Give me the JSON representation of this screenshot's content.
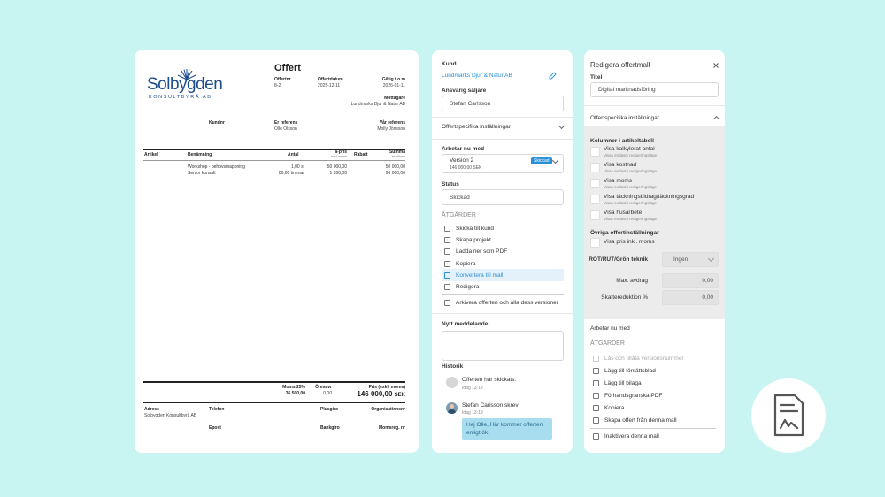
{
  "document": {
    "logo_word": "Solbygden",
    "logo_sub": "KONSULTBYRÅ AB",
    "title": "Offert",
    "offer_no_label": "Offertnr",
    "offer_no": "8-2",
    "offer_date_label": "Offertdatum",
    "offer_date": "2025-12-11",
    "valid_label": "Giltig t o m",
    "valid_date": "2026-01-11",
    "recipient_label": "Mottagare",
    "recipient": "Lundmarks Djur & Natur AB",
    "customer_no_label": "Kundnr",
    "their_ref_label": "Er referens",
    "their_ref": "Olle Olsson",
    "our_ref_label": "Vår referens",
    "our_ref": "Molly Jönsson",
    "columns": {
      "article": "Artikel",
      "name": "Benämning",
      "qty": "Antal",
      "price": "à-pris",
      "price_sub": "exkl. moms",
      "discount": "Rabatt",
      "sum": "Summa",
      "sum_sub": "ex. Moms"
    },
    "rows": [
      {
        "name": "Workshop - behovsmappning",
        "qty": "1,00 st",
        "price": "50 000,00",
        "sum": "50 000,00"
      },
      {
        "name": "Senior konsult",
        "qty": "80,00 timmar",
        "price": "1 200,00",
        "sum": "96 000,00"
      }
    ],
    "vat_label": "Moms 25%",
    "vat_value": "36 500,00",
    "rounding_label": "Öresavr",
    "rounding_value": "0,00",
    "total_label": "Pris (exkl. moms)",
    "total_value": "146 000,00",
    "currency": "SEK",
    "footer": {
      "address_label": "Adress",
      "address": "Solbygden Konsultbyrå AB",
      "phone_label": "Telefon",
      "postgiro_label": "Plusgiro",
      "orgno_label": "Organisationsnr",
      "email_label": "Epost",
      "bankgiro_label": "Bankgiro",
      "vatno_label": "Momsreg. nr"
    }
  },
  "middle": {
    "customer_label": "Kund",
    "customer": "Lundmarks Djur & Natur AB",
    "seller_label": "Ansvarig säljare",
    "seller": "Stefan Carlsson",
    "offer_settings": "Offertspecifika inställningar",
    "working_label": "Arbetar nu med",
    "version": "Version 2",
    "version_badge": "Skickad",
    "version_amount": "146 000,00 SEK",
    "status_label": "Status",
    "status": "Skickad",
    "actions_heading": "ÅTGÄRDER",
    "actions": [
      "Skicka till kund",
      "Skapa projekt",
      "Ladda ner som PDF",
      "Kopiera",
      "Konvertera till mall",
      "Redigera"
    ],
    "archive": "Arkivera offerten och alla dess versioner",
    "new_message_label": "Nytt meddelande",
    "history_label": "Historik",
    "history": [
      {
        "text": "Offerten har skickats.",
        "time": "Idag 13:19"
      },
      {
        "text": "Stefan Carlsson skrev",
        "time": "Idag 13:19",
        "message": "Hej Olle, Här kommer offerten enligt ök."
      }
    ]
  },
  "right": {
    "title": "Redigera offertmall",
    "title_label": "Titel",
    "title_value": "Digital marknadsföring",
    "offer_settings": "Offertspecifika inställningar",
    "columns_label": "Kolumner i artikeltabell",
    "columns": [
      {
        "label": "Visa kalkylerat antal",
        "sub": "Visas endast i redigeringsläge"
      },
      {
        "label": "Visa kostnad",
        "sub": "Visas endast i redigeringsläge"
      },
      {
        "label": "Visa moms",
        "sub": "Visas endast i redigeringsläge"
      },
      {
        "label": "Visa täckningsbidrag/täckningsgrad",
        "sub": "Visas endast i redigeringsläge"
      },
      {
        "label": "Visa husarbete",
        "sub": "Visas endast i redigeringsläge"
      }
    ],
    "other_label": "Övriga offertinställningar",
    "price_incl_vat": "Visa pris inkl. moms",
    "rot_label": "ROT/RUT/Grön teknik",
    "rot_value": "Ingen",
    "max_deduction_label": "Max. avdrag",
    "max_deduction": "0,00",
    "tax_reduction_label": "Skattereduktion %",
    "tax_reduction": "0,00",
    "working_label": "Arbetar nu med",
    "actions_heading": "ÅTGÄRDER",
    "actions_disabled": "Lås och tillåta versionsnummer",
    "actions": [
      "Lägg till försättsblad",
      "Lägg till bilaga",
      "Förhandsgranska PDF",
      "Kopiera",
      "Skapa offert från denna mall"
    ],
    "deactivate": "Inaktivera denna mall"
  },
  "colors": {
    "background": "#c8f4f2",
    "accent": "#2a8fd6",
    "logo": "#1d4d8c",
    "message_bubble": "#a8dcef"
  }
}
